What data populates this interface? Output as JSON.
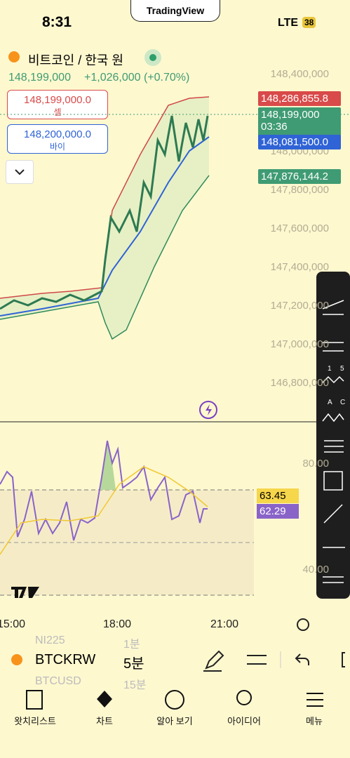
{
  "status_bar": {
    "time": "8:31",
    "app": "TradingView",
    "network": "LTE",
    "battery": "38"
  },
  "header": {
    "symbol": "비트코인 / 한국 원",
    "price": "148,199,000",
    "change": "+1,026,000 (+0.70%)"
  },
  "order": {
    "sell_price": "148,199,000.0",
    "sell_label": "셀",
    "buy_price": "148,200,000.0",
    "buy_label": "바이"
  },
  "price_axis": [
    "148,400,000",
    "148,000,000",
    "147,800,000",
    "147,600,000",
    "147,400,000",
    "147,200,000",
    "147,000,000",
    "146,800,000"
  ],
  "price_tags": {
    "upper": "148,286,855.8",
    "last": "148,199,000",
    "countdown": "03:36",
    "middle": "148,081,500.0",
    "lower": "147,876,144.2"
  },
  "rsi": {
    "axis": [
      "80.00",
      "40.00"
    ],
    "ma": "63.45",
    "rsi": "62.29"
  },
  "time_axis": [
    "15:00",
    "18:00",
    "21:00"
  ],
  "toolbar_labels": [
    "1",
    "5",
    "A",
    "C"
  ],
  "symbol_bar": {
    "symbol": "BTCKRW",
    "interval": "5분",
    "ghost": [
      "NI225",
      "1분",
      "BTCUSD",
      "15분"
    ]
  },
  "tabs": [
    "왓치리스트",
    "차트",
    "알아 보기",
    "아이디어",
    "메뉴"
  ]
}
